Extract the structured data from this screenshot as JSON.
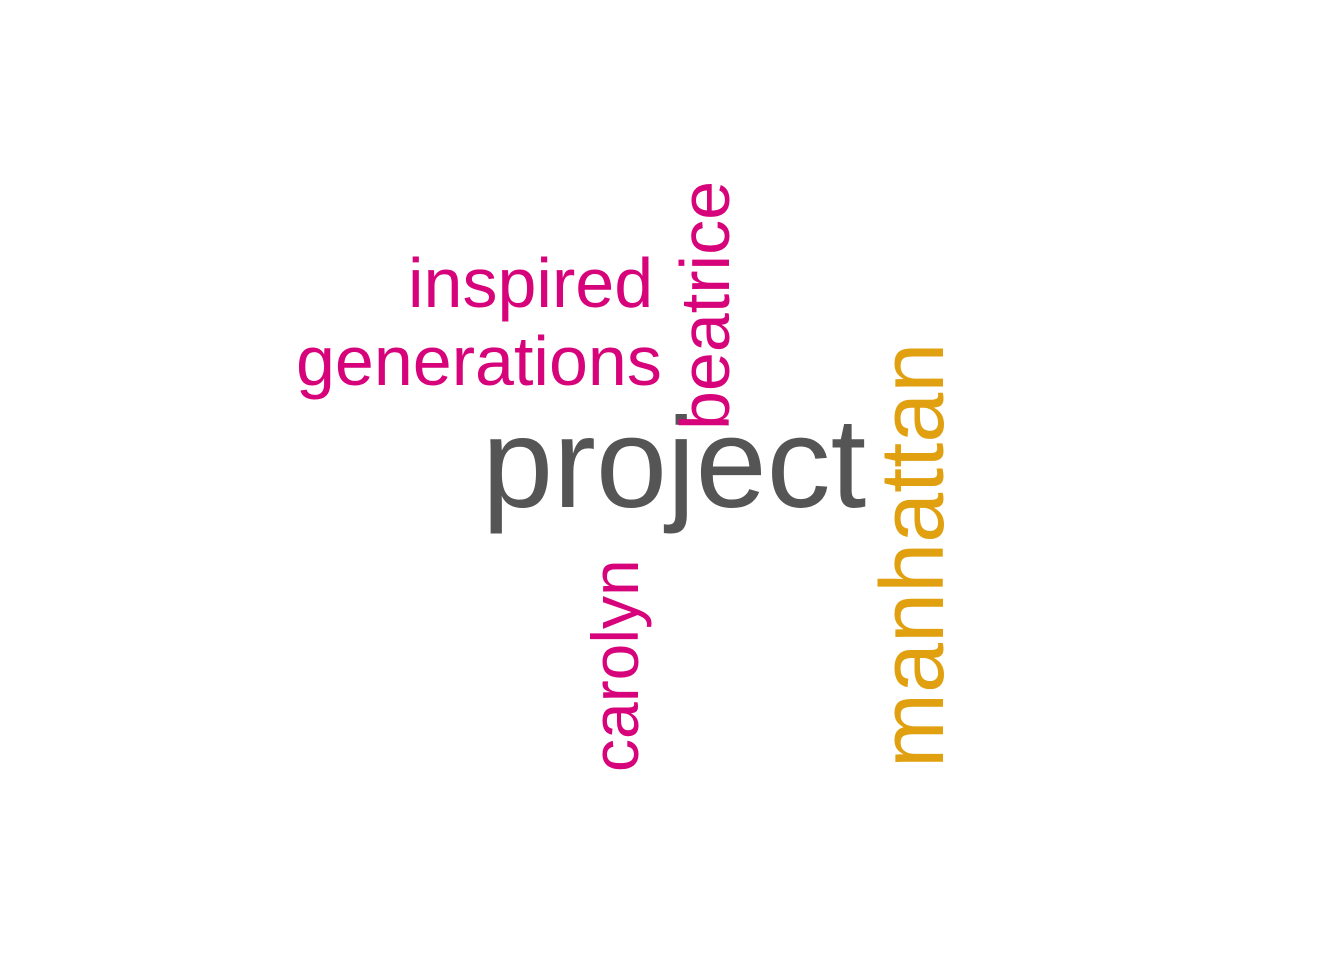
{
  "word_cloud": {
    "colors": {
      "primary": "#555555",
      "secondary": "#E0A010",
      "tertiary": "#D6037A"
    },
    "words": [
      {
        "id": "project",
        "text": "project",
        "orientation": "horizontal",
        "color": "#555555"
      },
      {
        "id": "manhattan",
        "text": "manhattan",
        "orientation": "vertical",
        "color": "#E0A010"
      },
      {
        "id": "beatrice",
        "text": "beatrice",
        "orientation": "vertical",
        "color": "#D6037A"
      },
      {
        "id": "inspired",
        "text": "inspired",
        "orientation": "horizontal",
        "color": "#D6037A"
      },
      {
        "id": "generations",
        "text": "generations",
        "orientation": "horizontal",
        "color": "#D6037A"
      },
      {
        "id": "carolyn",
        "text": "carolyn",
        "orientation": "vertical",
        "color": "#D6037A"
      }
    ]
  }
}
